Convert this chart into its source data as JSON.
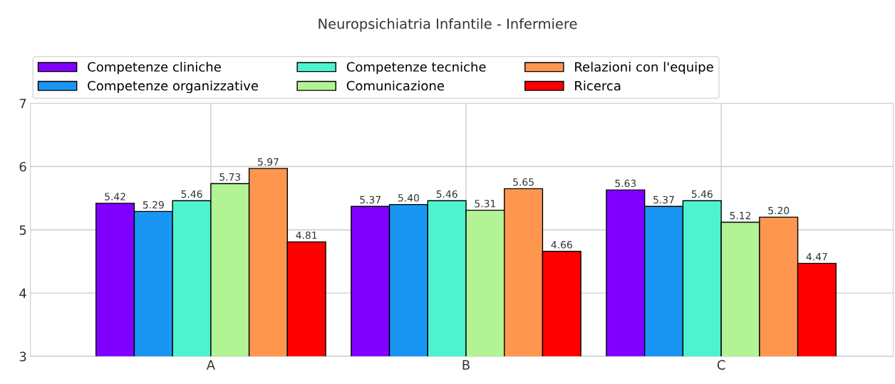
{
  "chart_data": {
    "type": "bar",
    "title": "Neuropsichiatria Infantile - Infermiere",
    "categories": [
      "A",
      "B",
      "C"
    ],
    "series": [
      {
        "name": "Competenze cliniche",
        "color": "#8000ff",
        "values": [
          5.42,
          5.37,
          5.63
        ],
        "value_labels": [
          "5.42",
          "5.37",
          "5.63"
        ]
      },
      {
        "name": "Competenze organizzative",
        "color": "#1996f3",
        "values": [
          5.29,
          5.4,
          5.37
        ],
        "value_labels": [
          "5.29",
          "5.40",
          "5.37"
        ]
      },
      {
        "name": "Competenze tecniche",
        "color": "#4df3ce",
        "values": [
          5.46,
          5.46,
          5.46
        ],
        "value_labels": [
          "5.46",
          "5.46",
          "5.46"
        ]
      },
      {
        "name": "Comunicazione",
        "color": "#b2f396",
        "values": [
          5.73,
          5.31,
          5.12
        ],
        "value_labels": [
          "5.73",
          "5.31",
          "5.12"
        ]
      },
      {
        "name": "Relazioni con l'equipe",
        "color": "#ff964f",
        "values": [
          5.97,
          5.65,
          5.2
        ],
        "value_labels": [
          "5.97",
          "5.65",
          "5.20"
        ]
      },
      {
        "name": "Ricerca",
        "color": "#ff0000",
        "values": [
          4.81,
          4.66,
          4.47
        ],
        "value_labels": [
          "4.81",
          "4.66",
          "4.47"
        ]
      }
    ],
    "ylim": [
      3,
      7
    ],
    "yticks": [
      3,
      4,
      5,
      6,
      7
    ],
    "grid": true,
    "legend": "top"
  }
}
